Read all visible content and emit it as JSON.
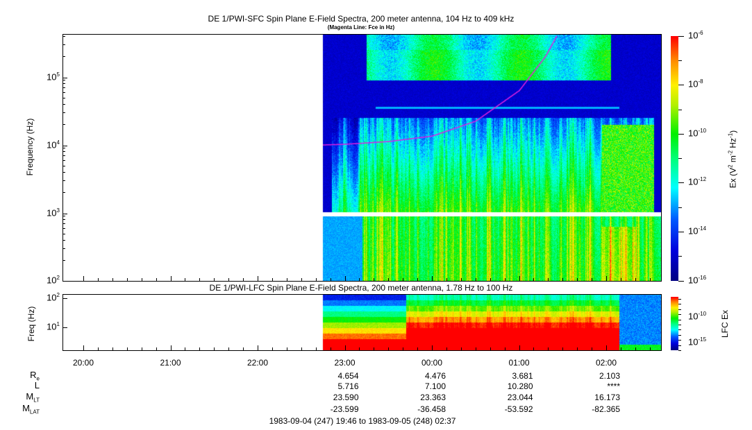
{
  "chart_data": [
    {
      "type": "heatmap",
      "title": "DE 1/PWI-SFC  Spin Plane E-Field Spectra, 200 meter antenna, 104 Hz to 409 kHz",
      "subtitle": "(Magenta Line: Fce in Hz)",
      "ylabel": "Frequency (Hz)",
      "yscale": "log",
      "ylim": [
        100,
        409000
      ],
      "yticks": [
        "10^2",
        "10^3",
        "10^4",
        "10^5"
      ],
      "ytick_labels": [
        {
          "b": "10",
          "e": "2"
        },
        {
          "b": "10",
          "e": "3"
        },
        {
          "b": "10",
          "e": "4"
        },
        {
          "b": "10",
          "e": "5"
        }
      ],
      "data_start": "22:45",
      "colorbar": {
        "label": "Ex (V2 m-2 Hz-1)",
        "range": [
          -16,
          -6
        ],
        "ticks": [
          {
            "b": "10",
            "e": "-6"
          },
          {
            "b": "10",
            "e": "-8"
          },
          {
            "b": "10",
            "e": "-10"
          },
          {
            "b": "10",
            "e": "-12"
          },
          {
            "b": "10",
            "e": "-14"
          },
          {
            "b": "10",
            "e": "-16"
          }
        ]
      },
      "fce_line": {
        "color": "#e020e0",
        "points_hours_logHz": [
          [
            -0.25,
            4.0
          ],
          [
            0,
            4.01
          ],
          [
            0.5,
            4.05
          ],
          [
            1,
            4.13
          ],
          [
            1.5,
            4.35
          ],
          [
            2,
            4.8
          ],
          [
            2.3,
            5.3
          ],
          [
            2.45,
            5.65
          ]
        ]
      }
    },
    {
      "type": "heatmap",
      "title": "DE 1/PWI-LFC  Spin Plane E-Field Spectra, 200 meter antenna, 1.78 Hz to 100 Hz",
      "ylabel": "Freq (Hz)",
      "yscale": "log",
      "ytick_labels": [
        {
          "b": "10",
          "e": "2"
        },
        {
          "b": "10",
          "e": "1"
        }
      ],
      "colorbar": {
        "label": "LFC Ex",
        "ticks": [
          {
            "b": "10",
            "e": "-10"
          },
          {
            "b": "10",
            "e": "-15"
          }
        ]
      }
    }
  ],
  "time_axis": [
    "20:00",
    "21:00",
    "22:00",
    "23:00",
    "00:00",
    "01:00",
    "02:00"
  ],
  "ephemeris": {
    "labels": [
      {
        "b": "R",
        "s": "e"
      },
      {
        "b": "L",
        "s": ""
      },
      {
        "b": "M",
        "s": "LT"
      },
      {
        "b": "M",
        "s": "LAT"
      }
    ],
    "rows": [
      [
        "4.654",
        "4.476",
        "3.681",
        "2.103"
      ],
      [
        "5.716",
        "7.100",
        "10.280",
        "****"
      ],
      [
        "23.590",
        "23.363",
        "23.044",
        "16.173"
      ],
      [
        "-23.599",
        "-36.458",
        "-53.592",
        "-82.365"
      ]
    ]
  },
  "time_range": "1983-09-04 (247) 19:46 to 1983-09-05 (248) 02:37"
}
